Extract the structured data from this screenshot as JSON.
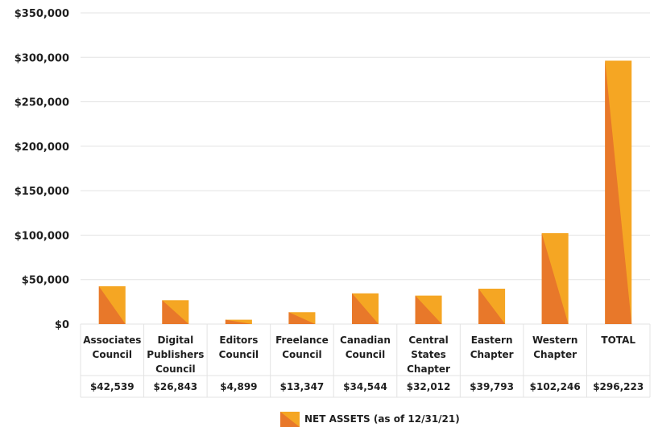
{
  "chart_data": {
    "type": "bar",
    "categories": [
      [
        "Associates",
        "Council"
      ],
      [
        "Digital",
        "Publishers",
        "Council"
      ],
      [
        "Editors",
        "Council"
      ],
      [
        "Freelance",
        "Council"
      ],
      [
        "Canadian",
        "Council"
      ],
      [
        "Central",
        "States",
        "Chapter"
      ],
      [
        "Eastern",
        "Chapter"
      ],
      [
        "Western",
        "Chapter"
      ],
      [
        "TOTAL"
      ]
    ],
    "series": [
      {
        "name": "NET ASSETS (as of 12/31/21)",
        "values": [
          42539,
          26843,
          4899,
          13347,
          34544,
          32012,
          39793,
          102246,
          296223
        ]
      }
    ],
    "value_labels": [
      "$42,539",
      "$26,843",
      "$4,899",
      "$13,347",
      "$34,544",
      "$32,012",
      "$39,793",
      "$102,246",
      "$296,223"
    ],
    "yticks": [
      0,
      50000,
      100000,
      150000,
      200000,
      250000,
      300000,
      350000
    ],
    "ytick_labels": [
      "$0",
      "$50,000",
      "$100,000",
      "$150,000",
      "$200,000",
      "$250,000",
      "$300,000",
      "$350,000"
    ],
    "ylim": [
      0,
      350000
    ],
    "title": "",
    "xlabel": "",
    "ylabel": "",
    "grid": true,
    "legend_position": "bottom-center",
    "colors": {
      "light": "#f5a623",
      "dark": "#e8782a",
      "grid": "#e3e3e3",
      "text": "#1f1f1f"
    }
  }
}
